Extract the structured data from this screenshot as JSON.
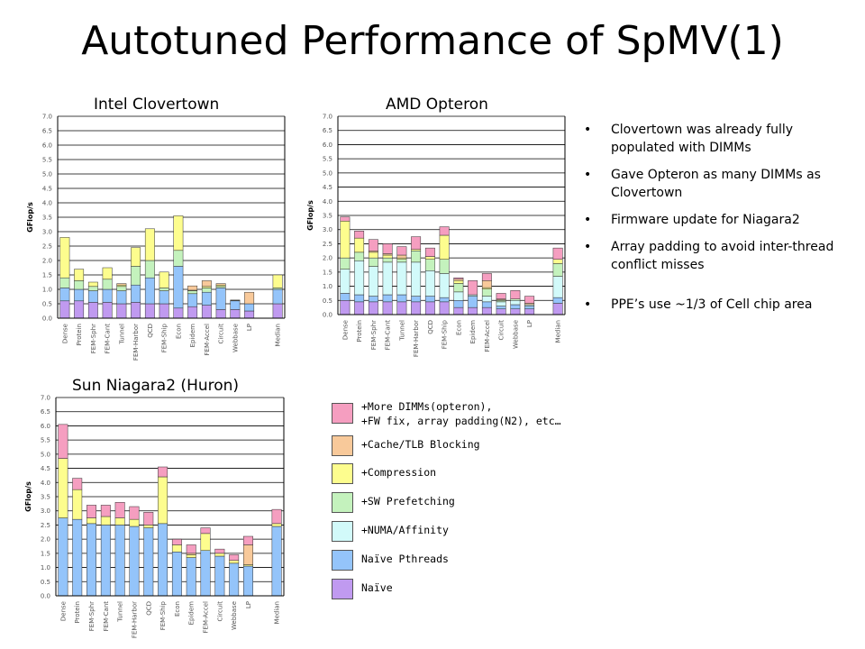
{
  "slide": {
    "title": "Autotuned Performance of SpMV(1)",
    "bullets": [
      "Clovertown was already fully populated with DIMMs",
      "Gave Opteron as many DIMMs as Clovertown",
      "Firmware update for Niagara2",
      "Array padding to avoid inter-thread conflict misses",
      "PPE’s use ~1/3 of Cell chip area"
    ],
    "bullet_glyph": "•"
  },
  "legend": [
    {
      "label": "+More DIMMs(opteron),\n+FW fix, array padding(N2), etc…",
      "color": "#f59ec0"
    },
    {
      "label": "+Cache/TLB Blocking",
      "color": "#f8c99a"
    },
    {
      "label": "+Compression",
      "color": "#fdfd8e"
    },
    {
      "label": "+SW Prefetching",
      "color": "#c4f2bd"
    },
    {
      "label": "+NUMA/Affinity",
      "color": "#d2fafa"
    },
    {
      "label": "Naïve Pthreads",
      "color": "#94c4fa"
    },
    {
      "label": "Naïve",
      "color": "#c09af0"
    }
  ],
  "chart_data": [
    {
      "type": "bar",
      "stacked": true,
      "title": "Intel Clovertown",
      "ylabel": "GFlop/s",
      "ylim": [
        0,
        7
      ],
      "yticks": [
        "0.0",
        "0.5",
        "1.0",
        "1.5",
        "2.0",
        "2.5",
        "3.0",
        "3.5",
        "4.0",
        "4.5",
        "5.0",
        "5.5",
        "6.0",
        "6.5",
        "7.0"
      ],
      "categories": [
        "Dense",
        "Protein",
        "FEM-Sphr",
        "FEM-Cant",
        "Tunnel",
        "FEM-Harbor",
        "QCD",
        "FEM-Ship",
        "Econ",
        "Epidem",
        "FEM-Accel",
        "Circuit",
        "Webbase",
        "LP",
        "",
        "Median"
      ],
      "series": [
        {
          "name": "Naïve",
          "values": [
            0.6,
            0.6,
            0.55,
            0.55,
            0.5,
            0.55,
            0.5,
            0.5,
            0.35,
            0.4,
            0.45,
            0.3,
            0.3,
            0.25,
            null,
            0.5
          ]
        },
        {
          "name": "Naïve Pthreads",
          "values": [
            0.45,
            0.4,
            0.4,
            0.45,
            0.45,
            0.6,
            0.9,
            0.45,
            1.45,
            0.45,
            0.45,
            0.75,
            0.3,
            0.25,
            null,
            0.5
          ]
        },
        {
          "name": "+NUMA/Affinity",
          "values": [
            0,
            0,
            0,
            0,
            0,
            0,
            0,
            0,
            0,
            0,
            0,
            0,
            0,
            0,
            null,
            0
          ]
        },
        {
          "name": "+SW Prefetching",
          "values": [
            0.35,
            0.3,
            0.15,
            0.35,
            0.15,
            0.65,
            0.6,
            0.1,
            0.55,
            0.1,
            0.15,
            0.05,
            0.02,
            0,
            null,
            0.05
          ]
        },
        {
          "name": "+Compression",
          "values": [
            1.4,
            0.4,
            0.15,
            0.4,
            0.05,
            0.65,
            1.1,
            0.55,
            1.2,
            0.02,
            0.05,
            0.05,
            0.01,
            0,
            null,
            0.45
          ]
        },
        {
          "name": "+Cache/TLB Blocking",
          "values": [
            0,
            0,
            0,
            0,
            0.05,
            0,
            0,
            0,
            0,
            0.15,
            0.2,
            0.05,
            0,
            0.4,
            null,
            0
          ]
        },
        {
          "name": "+More DIMMs(opteron),\n+FW fix, array padding(N2), etc…",
          "values": [
            0,
            0,
            0,
            0,
            0,
            0,
            0,
            0,
            0,
            0,
            0,
            0,
            0,
            0,
            null,
            0
          ]
        }
      ]
    },
    {
      "type": "bar",
      "stacked": true,
      "title": "AMD Opteron",
      "ylabel": "GFlop/s",
      "ylim": [
        0,
        7
      ],
      "yticks": [
        "0.0",
        "0.5",
        "1.0",
        "1.5",
        "2.0",
        "2.5",
        "3.0",
        "3.5",
        "4.0",
        "4.5",
        "5.0",
        "5.5",
        "6.0",
        "6.5",
        "7.0"
      ],
      "categories": [
        "Dense",
        "Protein",
        "FEM-Sphr",
        "FEM-Cant",
        "Tunnel",
        "FEM-Harbor",
        "QCD",
        "FEM-Ship",
        "Econ",
        "Epidem",
        "FEM-Accel",
        "Circuit",
        "Webbase",
        "LP",
        "",
        "Median"
      ],
      "series": [
        {
          "name": "Naïve",
          "values": [
            0.5,
            0.45,
            0.45,
            0.45,
            0.45,
            0.45,
            0.45,
            0.45,
            0.25,
            0.25,
            0.25,
            0.2,
            0.2,
            0.2,
            null,
            0.4
          ]
        },
        {
          "name": "Naïve Pthreads",
          "values": [
            0.25,
            0.25,
            0.2,
            0.25,
            0.25,
            0.2,
            0.2,
            0.15,
            0.25,
            0.4,
            0.2,
            0.1,
            0.15,
            0.1,
            null,
            0.2
          ]
        },
        {
          "name": "+NUMA/Affinity",
          "values": [
            0.85,
            1.2,
            1.05,
            1.15,
            1.15,
            1.2,
            0.9,
            0.85,
            0.3,
            0.05,
            0.2,
            0.15,
            0.15,
            0.05,
            null,
            0.75
          ]
        },
        {
          "name": "+SW Prefetching",
          "values": [
            0.4,
            0.3,
            0.3,
            0.15,
            0.1,
            0.4,
            0.4,
            0.5,
            0.3,
            0,
            0.25,
            0.05,
            0.05,
            0,
            null,
            0.45
          ]
        },
        {
          "name": "+Compression",
          "values": [
            1.3,
            0.5,
            0.2,
            0.1,
            0.05,
            0.05,
            0.1,
            0.85,
            0.1,
            0,
            0.05,
            0.02,
            0,
            0,
            null,
            0.15
          ]
        },
        {
          "name": "+Cache/TLB Blocking",
          "values": [
            0,
            0,
            0.05,
            0.05,
            0.1,
            0,
            0,
            0,
            0.05,
            0,
            0.25,
            0.03,
            0,
            0.05,
            null,
            0
          ]
        },
        {
          "name": "+More DIMMs(opteron),\n+FW fix, array padding(N2), etc…",
          "values": [
            0.15,
            0.25,
            0.4,
            0.35,
            0.3,
            0.45,
            0.3,
            0.3,
            0.05,
            0.5,
            0.25,
            0.2,
            0.3,
            0.25,
            null,
            0.4
          ]
        }
      ]
    },
    {
      "type": "bar",
      "stacked": true,
      "title": "Sun Niagara2 (Huron)",
      "ylabel": "GFlop/s",
      "ylim": [
        0,
        7
      ],
      "yticks": [
        "0.0",
        "0.5",
        "1.0",
        "1.5",
        "2.0",
        "2.5",
        "3.0",
        "3.5",
        "4.0",
        "4.5",
        "5.0",
        "5.5",
        "6.0",
        "6.5",
        "7.0"
      ],
      "categories": [
        "Dense",
        "Protein",
        "FEM-Sphr",
        "FEM-Cant",
        "Tunnel",
        "FEM-Harbor",
        "QCD",
        "FEM-Ship",
        "Econ",
        "Epidem",
        "FEM-Accel",
        "Circuit",
        "Webbase",
        "LP",
        "",
        "Median"
      ],
      "series": [
        {
          "name": "Naïve",
          "values": [
            0,
            0,
            0,
            0,
            0,
            0,
            0,
            0,
            0,
            0,
            0,
            0,
            0,
            0,
            null,
            0
          ]
        },
        {
          "name": "Naïve Pthreads",
          "values": [
            2.75,
            2.7,
            2.55,
            2.5,
            2.5,
            2.45,
            2.4,
            2.55,
            1.55,
            1.35,
            1.6,
            1.4,
            1.15,
            1.05,
            null,
            2.45
          ]
        },
        {
          "name": "+NUMA/Affinity",
          "values": [
            0,
            0,
            0,
            0,
            0,
            0,
            0,
            0,
            0,
            0,
            0,
            0,
            0,
            0,
            null,
            0
          ]
        },
        {
          "name": "+SW Prefetching",
          "values": [
            0,
            0,
            0,
            0,
            0,
            0,
            0,
            0,
            0,
            0,
            0,
            0,
            0,
            0,
            null,
            0
          ]
        },
        {
          "name": "+Compression",
          "values": [
            2.1,
            1.05,
            0.2,
            0.3,
            0.25,
            0.25,
            0.1,
            1.65,
            0.25,
            0.1,
            0.6,
            0.1,
            0.1,
            0.05,
            null,
            0.1
          ]
        },
        {
          "name": "+Cache/TLB Blocking",
          "values": [
            0,
            0,
            0,
            0,
            0,
            0,
            0,
            0,
            0,
            0.05,
            0,
            0,
            0,
            0.7,
            null,
            0
          ]
        },
        {
          "name": "+More DIMMs(opteron),\n+FW fix, array padding(N2), etc…",
          "values": [
            1.2,
            0.4,
            0.45,
            0.4,
            0.55,
            0.45,
            0.45,
            0.35,
            0.2,
            0.3,
            0.2,
            0.15,
            0.2,
            0.3,
            null,
            0.5
          ]
        }
      ]
    }
  ]
}
